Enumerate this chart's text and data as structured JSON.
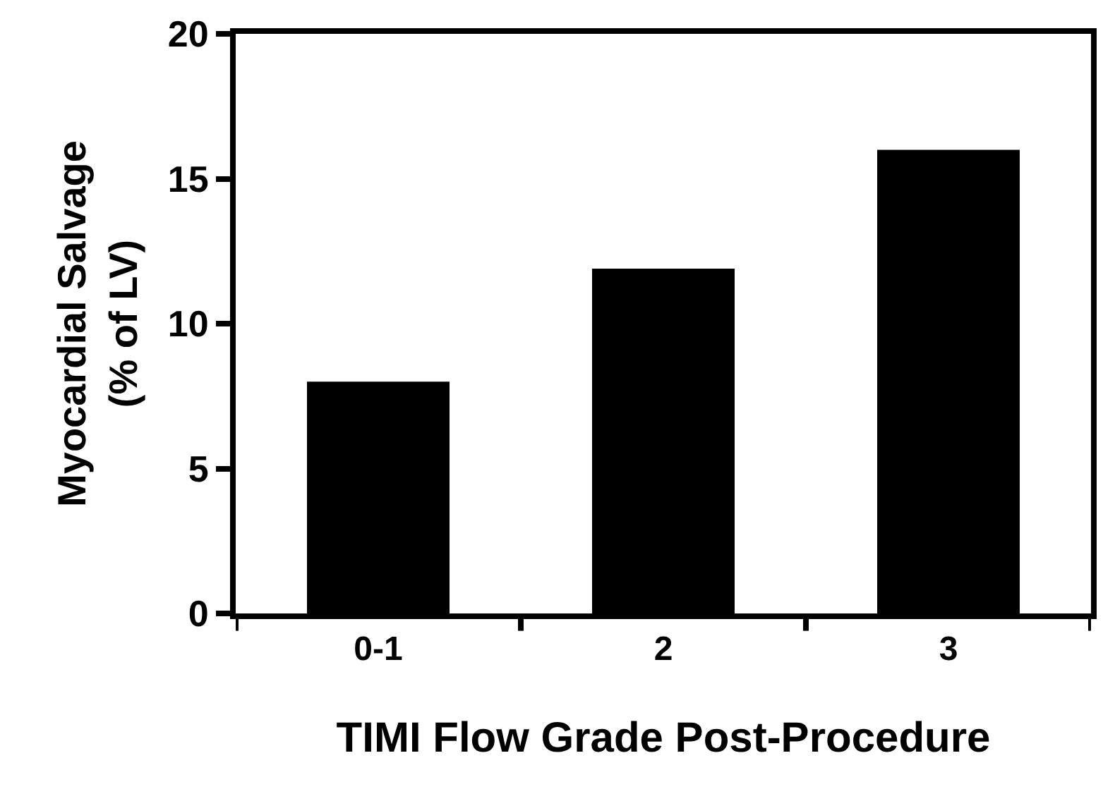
{
  "chart_data": {
    "type": "bar",
    "xlabel": "TIMI Flow Grade Post-Procedure",
    "ylabel": "Myocardial Salvage\n(% of LV)",
    "categories": [
      "0-1",
      "2",
      "3"
    ],
    "values": [
      8,
      11.9,
      16
    ],
    "color": "#000000",
    "ylim": [
      0,
      20
    ],
    "yticks": [
      0,
      5,
      10,
      15,
      20
    ],
    "grid": false
  }
}
